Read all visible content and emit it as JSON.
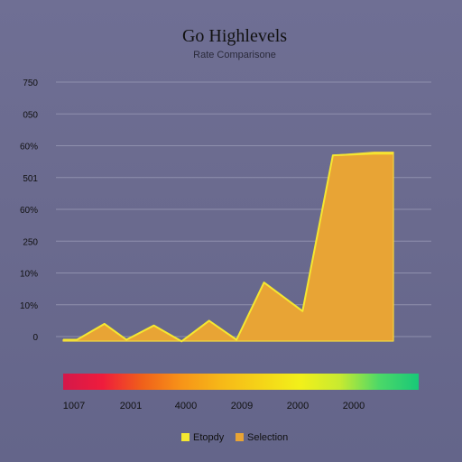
{
  "colors": {
    "background": "#6b6b90",
    "grid": "#8f90ad",
    "text": "#111111",
    "series_line": "#f5e830",
    "area_fill": "#e8a435",
    "area_edge": "#f0d640"
  },
  "chart_data": {
    "type": "area",
    "title": "Go Highlevels",
    "subtitle": "Rate Comparisone",
    "y_tick_labels": [
      "0",
      "10%",
      "10%",
      "250",
      "60%",
      "501",
      "60%",
      "050",
      "750"
    ],
    "x_tick_labels": [
      "1007",
      "2001",
      "4000",
      "2009",
      "2000",
      "2000"
    ],
    "ylim": [
      0,
      8
    ],
    "grid": true,
    "legend_position": "bottom",
    "legend": [
      {
        "label": "Etopdy",
        "color": "#f5e830"
      },
      {
        "label": "Selection",
        "color": "#e8a435"
      }
    ],
    "series": [
      {
        "name": "Etopdy",
        "x": [
          0,
          0.5,
          1.5,
          2.3,
          3.3,
          4.3,
          5.3,
          6.3,
          7.3,
          8.7,
          9.8,
          11.3,
          12.0
        ],
        "values": [
          -0.1,
          -0.1,
          0.4,
          -0.1,
          0.35,
          -0.15,
          0.5,
          -0.1,
          1.7,
          0.8,
          5.7,
          5.75,
          5.75
        ]
      },
      {
        "name": "Selection",
        "x": [
          0,
          0.5,
          1.5,
          2.3,
          3.3,
          4.3,
          5.3,
          6.3,
          7.3,
          8.7,
          9.8,
          11.3,
          12.0
        ],
        "values": [
          -0.1,
          -0.1,
          0.4,
          -0.1,
          0.35,
          -0.15,
          0.5,
          -0.1,
          1.7,
          0.8,
          5.7,
          5.8,
          5.8
        ]
      }
    ],
    "color_bar": [
      "#d4184a",
      "#ef1c3c",
      "#f0601a",
      "#f79418",
      "#f6b818",
      "#f5d418",
      "#f2f01a",
      "#c8ea30",
      "#4cd868",
      "#18c878"
    ]
  }
}
